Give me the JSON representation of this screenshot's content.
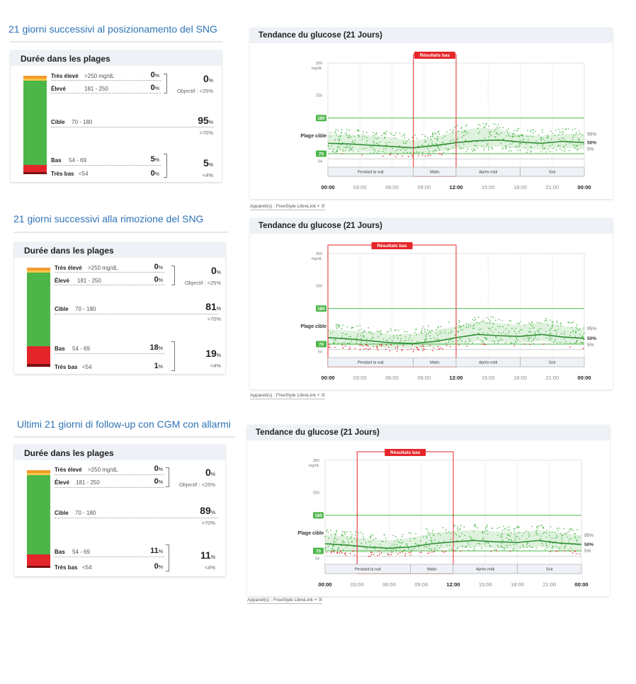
{
  "sections": [
    {
      "title": "21 giorni successivi al posizionamento del SNG",
      "tir": {
        "title": "Durée dans les plages",
        "rows": [
          {
            "key": "very_high",
            "label": "Très élevé",
            "range": ">250 mg/dL",
            "pct": "0",
            "color": "#f29a2e",
            "fraction": 0
          },
          {
            "key": "high",
            "label": "Élevé",
            "range": "181 - 250",
            "pct": "0",
            "color": "#f6c64a",
            "fraction": 0
          },
          {
            "key": "target",
            "label": "Cible",
            "range": "70 - 180",
            "pct": "95",
            "color": "#4cb748",
            "fraction": 0.95
          },
          {
            "key": "low",
            "label": "Bas",
            "range": "54 - 69",
            "pct": "5",
            "color": "#e4262a",
            "fraction": 0.05
          },
          {
            "key": "very_low",
            "label": "Très bas",
            "range": "<54",
            "pct": "0",
            "color": "#7b1113",
            "fraction": 0
          }
        ],
        "group_high_pct": "0",
        "group_high_target": "Objectif : <25%",
        "target_goal": ">70%",
        "group_low_pct": "5",
        "group_low_target": "<4%",
        "pct_unit": "%"
      },
      "agp": {
        "title": "Tendance du glucose (21 Jours)",
        "low_result_label": "Résultats bas",
        "low_window": [
          "08:00",
          "12:00"
        ],
        "device": "Appareil(s) : FreeStyle LibreLink + ②"
      }
    },
    {
      "title": "21 giorni successivi alla rimozione del SNG",
      "tir": {
        "title": "Durée dans les plages",
        "rows": [
          {
            "key": "very_high",
            "label": "Très élevé",
            "range": ">250 mg/dL",
            "pct": "0",
            "color": "#f29a2e",
            "fraction": 0
          },
          {
            "key": "high",
            "label": "Élevé",
            "range": "181 - 250",
            "pct": "0",
            "color": "#f6c64a",
            "fraction": 0
          },
          {
            "key": "target",
            "label": "Cible",
            "range": "70 - 180",
            "pct": "81",
            "color": "#4cb748",
            "fraction": 0.81
          },
          {
            "key": "low",
            "label": "Bas",
            "range": "54 - 69",
            "pct": "18",
            "color": "#e4262a",
            "fraction": 0.18
          },
          {
            "key": "very_low",
            "label": "Très bas",
            "range": "<54",
            "pct": "1",
            "color": "#7b1113",
            "fraction": 0.01
          }
        ],
        "group_high_pct": "0",
        "group_high_target": "Objectif : <25%",
        "target_goal": ">70%",
        "group_low_pct": "19",
        "group_low_target": "<4%",
        "pct_unit": "%"
      },
      "agp": {
        "title": "Tendance du glucose (21 Jours)",
        "low_result_label": "Résultats bas",
        "low_window": [
          "00:00",
          "12:00"
        ],
        "device": "Appareil(s) : FreeStyle LibreLink + ②"
      }
    },
    {
      "title": "Ultimi 21 giorni di follow-up con CGM con allarmi",
      "tir": {
        "title": "Durée dans les plages",
        "rows": [
          {
            "key": "very_high",
            "label": "Très élevé",
            "range": ">250 mg/dL",
            "pct": "0",
            "color": "#f29a2e",
            "fraction": 0
          },
          {
            "key": "high",
            "label": "Élevé",
            "range": "181 - 250",
            "pct": "0",
            "color": "#f6c64a",
            "fraction": 0
          },
          {
            "key": "target",
            "label": "Cible",
            "range": "70 - 180",
            "pct": "89",
            "color": "#4cb748",
            "fraction": 0.89
          },
          {
            "key": "low",
            "label": "Bas",
            "range": "54 - 69",
            "pct": "11",
            "color": "#e4262a",
            "fraction": 0.11
          },
          {
            "key": "very_low",
            "label": "Très bas",
            "range": "<54",
            "pct": "0",
            "color": "#7b1113",
            "fraction": 0
          }
        ],
        "group_high_pct": "0",
        "group_high_target": "Objectif : <25%",
        "target_goal": ">70%",
        "group_low_pct": "11",
        "group_low_target": "<4%",
        "pct_unit": "%"
      },
      "agp": {
        "title": "Tendance du glucose (21 Jours)",
        "low_result_label": "Résultats bas",
        "low_window": [
          "03:00",
          "12:00"
        ],
        "device": "Appareil(s) : FreeStyle LibreLink + ②"
      }
    }
  ],
  "chart_data": {
    "type": "line",
    "title": "Tendance du glucose (21 Jours)",
    "x_ticks": [
      "00:00",
      "03:00",
      "06:00",
      "09:00",
      "12:00",
      "15:00",
      "18:00",
      "21:00",
      "00:00"
    ],
    "y_unit": "mg/dL",
    "y_ticks": [
      54,
      70,
      180,
      250,
      350
    ],
    "ylim": [
      0,
      350
    ],
    "target_range": [
      70,
      180
    ],
    "target_label": "Plage cible",
    "percentile_labels": [
      "95%",
      "50%",
      "5%"
    ],
    "periods": [
      "Pendant la nuit",
      "Matin",
      "Après midi",
      "Soir"
    ],
    "period_bounds": [
      "00:00",
      "08:00",
      "12:00",
      "18:00",
      "24:00"
    ],
    "x_hours": [
      0,
      2,
      4,
      6,
      8,
      10,
      12,
      14,
      16,
      18,
      20,
      22,
      24
    ],
    "series": [
      {
        "name": "21 giorni successivi al posizionamento del SNG",
        "p95": [
          130,
          128,
          126,
          120,
          110,
          120,
          140,
          150,
          145,
          130,
          125,
          132,
          130
        ],
        "p50": [
          102,
          100,
          96,
          92,
          88,
          95,
          104,
          110,
          112,
          106,
          102,
          108,
          104
        ],
        "p5": [
          82,
          80,
          76,
          72,
          70,
          76,
          84,
          90,
          92,
          86,
          82,
          88,
          84
        ]
      },
      {
        "name": "21 giorni successivi alla rimozione del SNG",
        "p95": [
          115,
          112,
          108,
          100,
          102,
          112,
          125,
          140,
          135,
          128,
          138,
          126,
          118
        ],
        "p50": [
          90,
          86,
          80,
          74,
          72,
          78,
          90,
          100,
          96,
          94,
          100,
          92,
          88
        ],
        "p5": [
          70,
          66,
          62,
          58,
          58,
          62,
          70,
          80,
          76,
          74,
          80,
          72,
          68
        ]
      },
      {
        "name": "Ultimi 21 giorni di follow-up con CGM con allarmi",
        "p95": [
          118,
          115,
          108,
          102,
          110,
          125,
          132,
          135,
          130,
          128,
          134,
          126,
          118
        ],
        "p50": [
          92,
          88,
          82,
          78,
          82,
          92,
          98,
          102,
          98,
          96,
          102,
          94,
          90
        ],
        "p5": [
          72,
          68,
          64,
          62,
          66,
          74,
          80,
          82,
          78,
          76,
          82,
          74,
          70
        ]
      }
    ]
  }
}
